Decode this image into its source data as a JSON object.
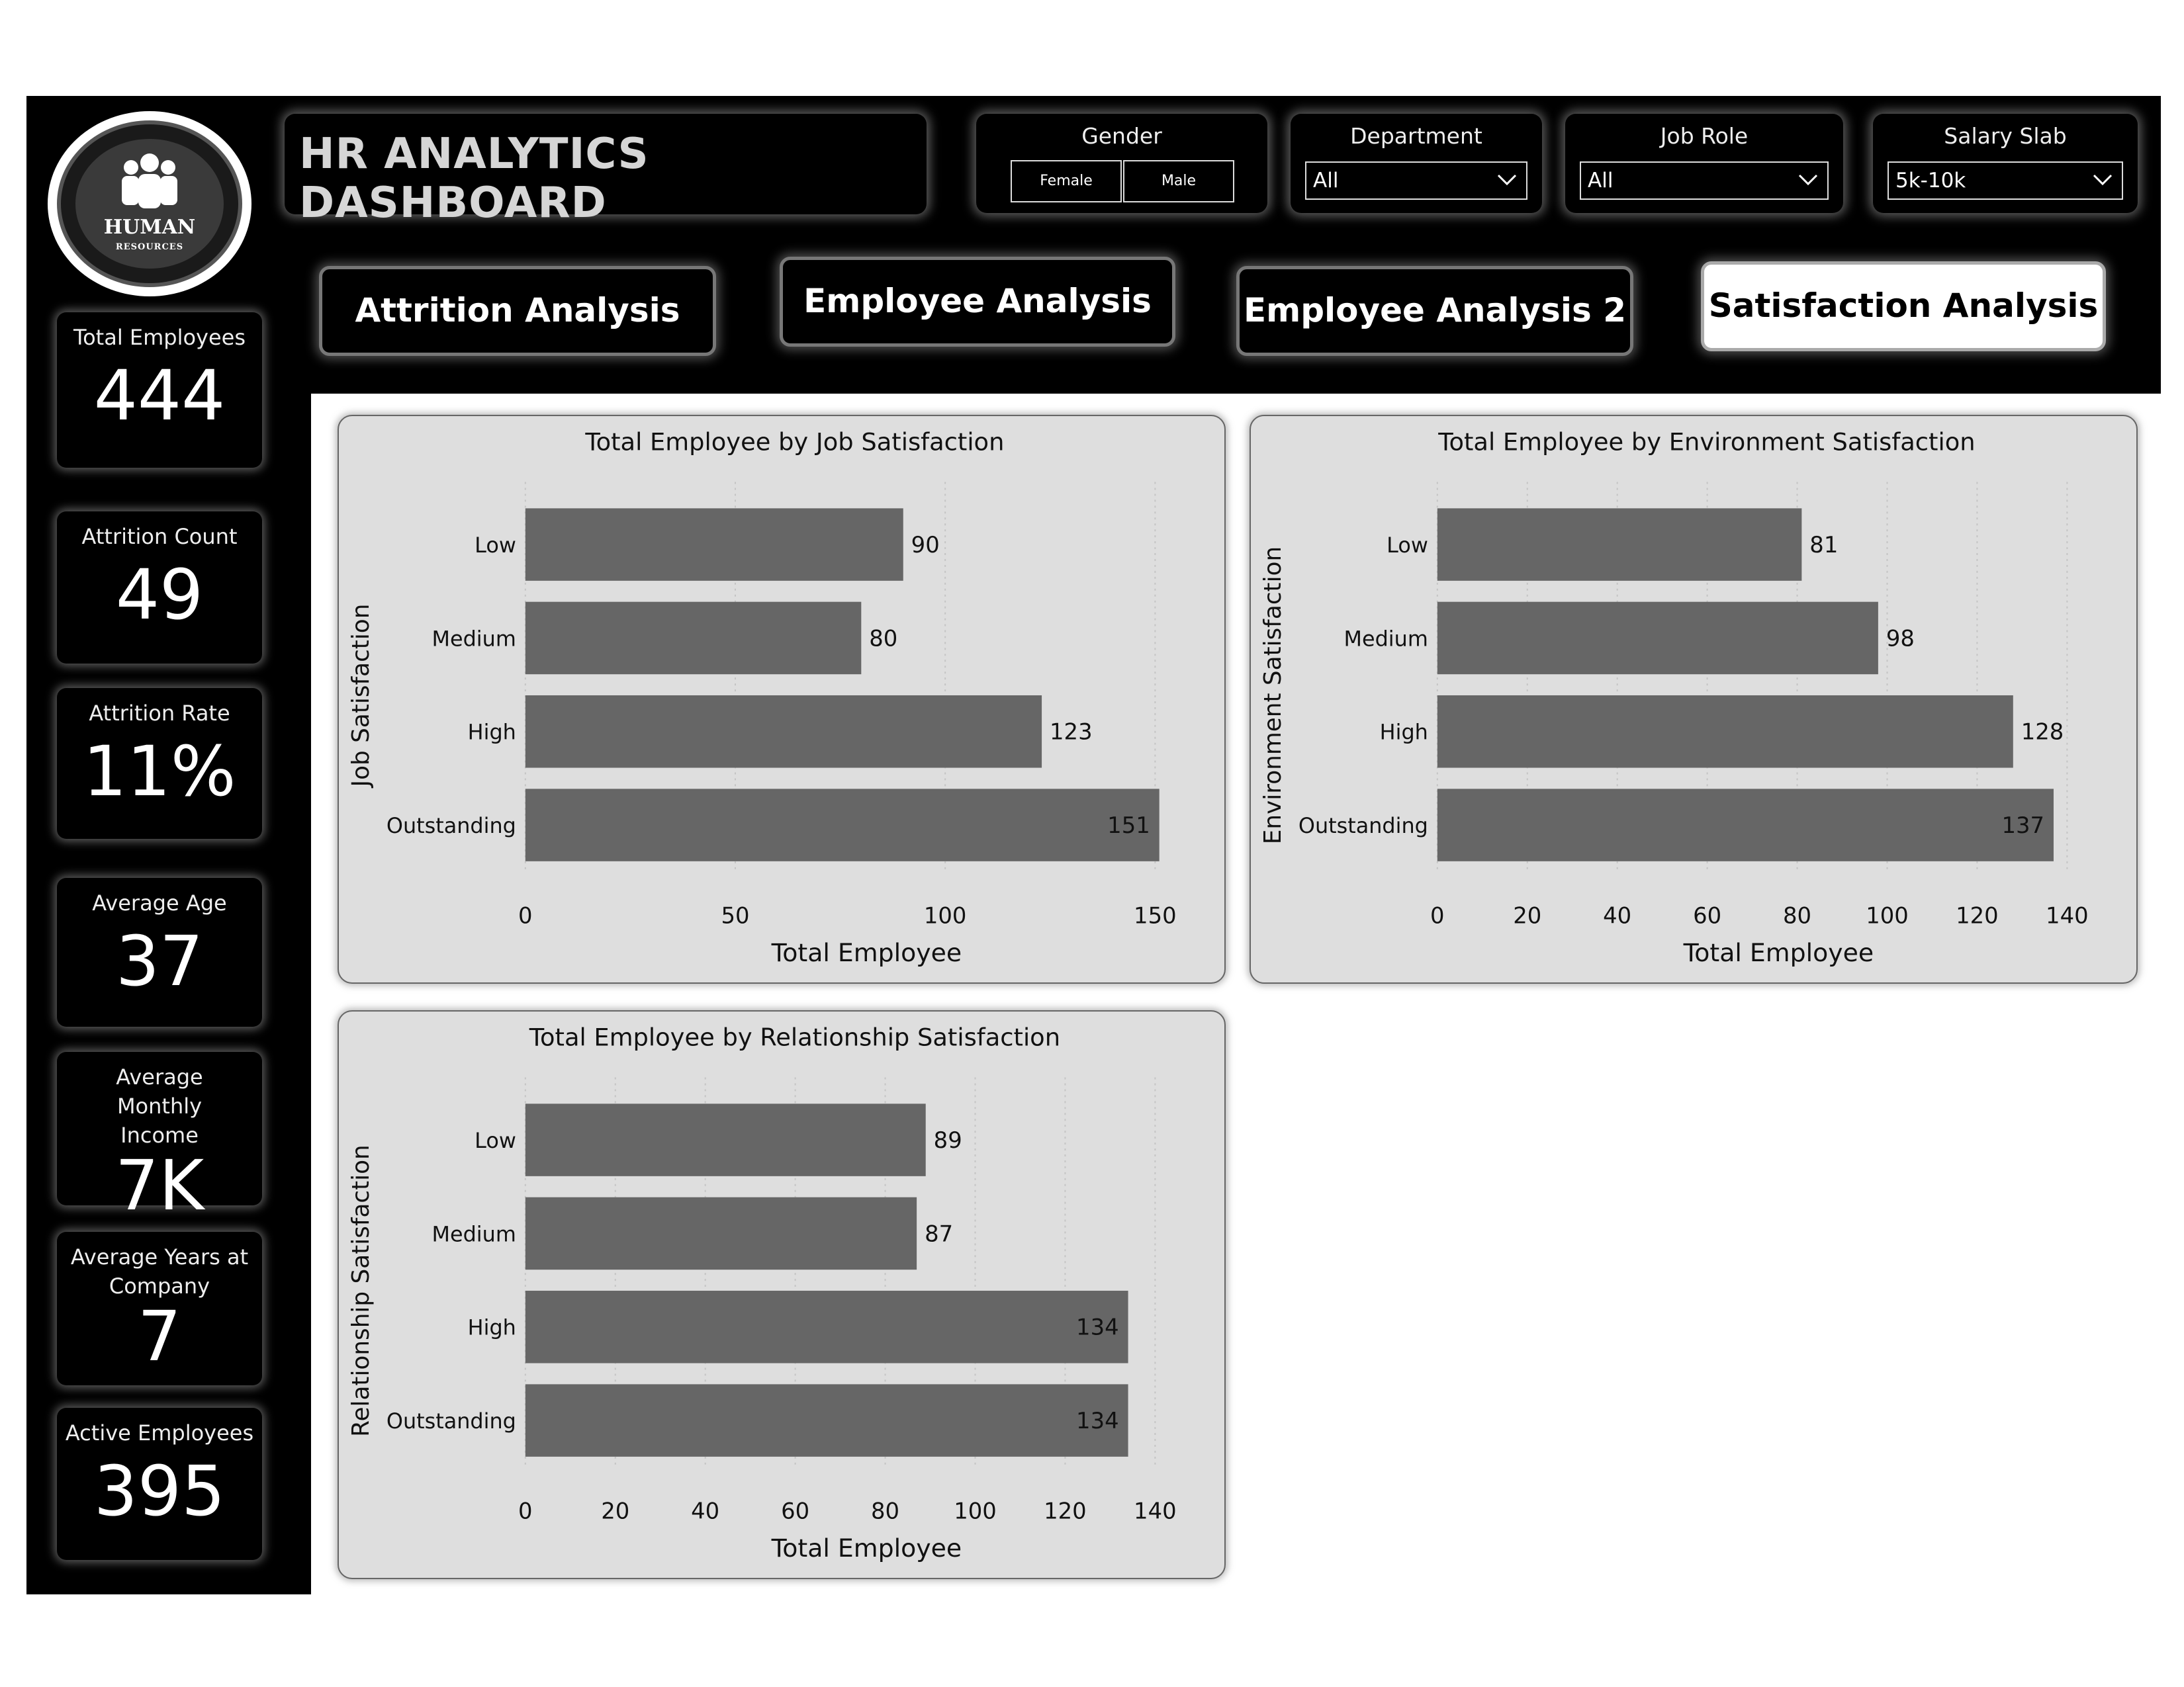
{
  "logo": {
    "line1": "HUMAN",
    "line2": "RESOURCES"
  },
  "kpis": [
    {
      "label": "Total Employees",
      "value": "444"
    },
    {
      "label": "Attrition Count",
      "value": "49"
    },
    {
      "label": "Attrition Rate",
      "value": "11%"
    },
    {
      "label": "Average Age",
      "value": "37"
    },
    {
      "label": "Average Monthly Income",
      "value": "7K"
    },
    {
      "label": "Average Years at Company",
      "value": "7"
    },
    {
      "label": "Active Employees",
      "value": "395"
    }
  ],
  "header": {
    "title": "HR ANALYTICS DASHBOARD"
  },
  "filters": {
    "gender": {
      "label": "Gender",
      "options": [
        "Female",
        "Male"
      ]
    },
    "department": {
      "label": "Department",
      "value": "All"
    },
    "job_role": {
      "label": "Job Role",
      "value": "All"
    },
    "salary_slab": {
      "label": "Salary Slab",
      "value": "5k-10k"
    }
  },
  "nav": {
    "items": [
      "Attrition Analysis",
      "Employee Analysis",
      "Employee Analysis 2",
      "Satisfaction Analysis"
    ],
    "active": "Satisfaction Analysis"
  },
  "colors": {
    "bar": "#666666",
    "panel": "#dedede",
    "frame": "#000000"
  },
  "chart_data": [
    {
      "type": "bar",
      "orientation": "horizontal",
      "title": "Total Employee by Job Satisfaction",
      "xlabel": "Total Employee",
      "ylabel": "Job Satisfaction",
      "categories": [
        "Low",
        "Medium",
        "High",
        "Outstanding"
      ],
      "values": [
        90,
        80,
        123,
        151
      ],
      "xlim": [
        0,
        150
      ],
      "xticks": [
        0,
        50,
        100,
        150
      ]
    },
    {
      "type": "bar",
      "orientation": "horizontal",
      "title": "Total Employee by Environment Satisfaction",
      "xlabel": "Total Employee",
      "ylabel": "Environment Satisfaction",
      "categories": [
        "Low",
        "Medium",
        "High",
        "Outstanding"
      ],
      "values": [
        81,
        98,
        128,
        137
      ],
      "xlim": [
        0,
        140
      ],
      "xticks": [
        0,
        20,
        40,
        60,
        80,
        100,
        120,
        140
      ]
    },
    {
      "type": "bar",
      "orientation": "horizontal",
      "title": "Total Employee by Relationship Satisfaction",
      "xlabel": "Total Employee",
      "ylabel": "Relationship Satisfaction",
      "categories": [
        "Low",
        "Medium",
        "High",
        "Outstanding"
      ],
      "values": [
        89,
        87,
        134,
        134
      ],
      "xlim": [
        0,
        140
      ],
      "xticks": [
        0,
        20,
        40,
        60,
        80,
        100,
        120,
        140
      ]
    }
  ]
}
